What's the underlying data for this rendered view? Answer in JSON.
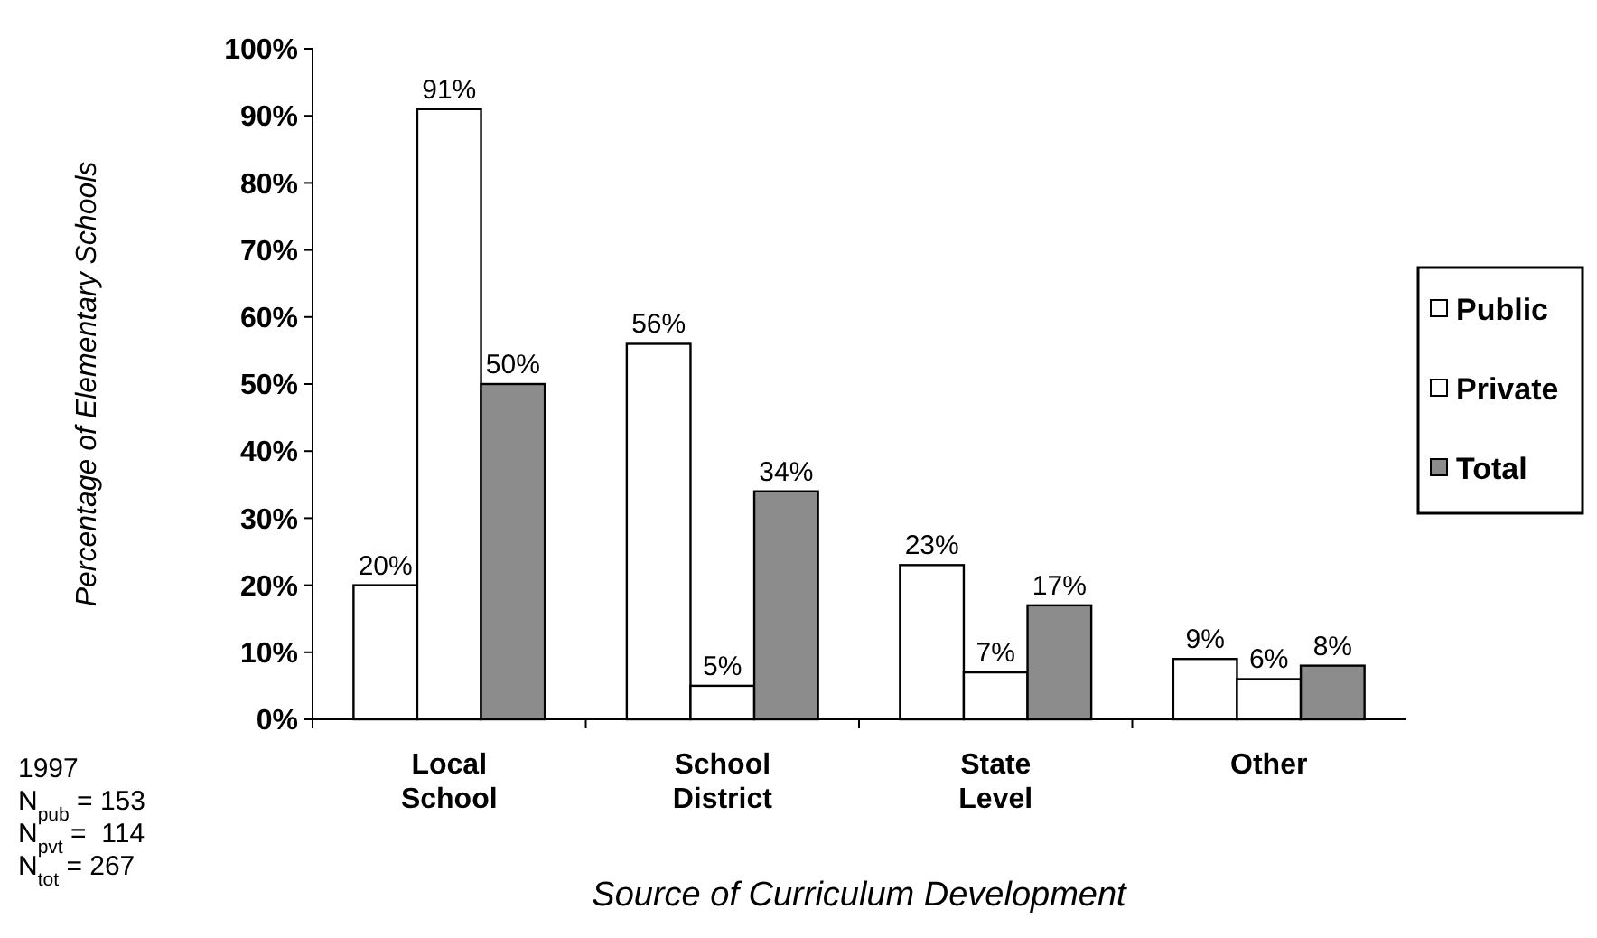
{
  "chart_data": {
    "type": "bar",
    "xlabel": "Source of Curriculum Development",
    "ylabel": "Percentage of Elementary Schools",
    "categories": [
      "Local School",
      "School District",
      "State Level",
      "Other"
    ],
    "series": [
      {
        "name": "Public",
        "color": "#ffffff",
        "values": [
          20,
          56,
          23,
          9
        ],
        "value_labels": [
          "20%",
          "56%",
          "23%",
          "9%"
        ]
      },
      {
        "name": "Private",
        "color": "#ffffff",
        "values": [
          91,
          5,
          7,
          6
        ],
        "value_labels": [
          "91%",
          "5%",
          "7%",
          "6%"
        ]
      },
      {
        "name": "Total",
        "color": "#8c8c8c",
        "values": [
          50,
          34,
          17,
          8
        ],
        "value_labels": [
          "50%",
          "34%",
          "17%",
          "8%"
        ]
      }
    ],
    "ylim": [
      0,
      100
    ],
    "yticks": [
      {
        "value": 0,
        "label": "0%"
      },
      {
        "value": 10,
        "label": "10%"
      },
      {
        "value": 20,
        "label": "20%"
      },
      {
        "value": 30,
        "label": "30%"
      },
      {
        "value": 40,
        "label": "40%"
      },
      {
        "value": 50,
        "label": "50%"
      },
      {
        "value": 60,
        "label": "60%"
      },
      {
        "value": 70,
        "label": "70%"
      },
      {
        "value": 80,
        "label": "80%"
      },
      {
        "value": 90,
        "label": "90%"
      },
      {
        "value": 100,
        "label": "100%"
      }
    ],
    "legend": "right",
    "grid": false,
    "annotations": [
      "1997",
      "N$_{pub}$ = 153",
      "N$_{pvt}$ =  114",
      "N$_{tot}$ = 267"
    ]
  }
}
